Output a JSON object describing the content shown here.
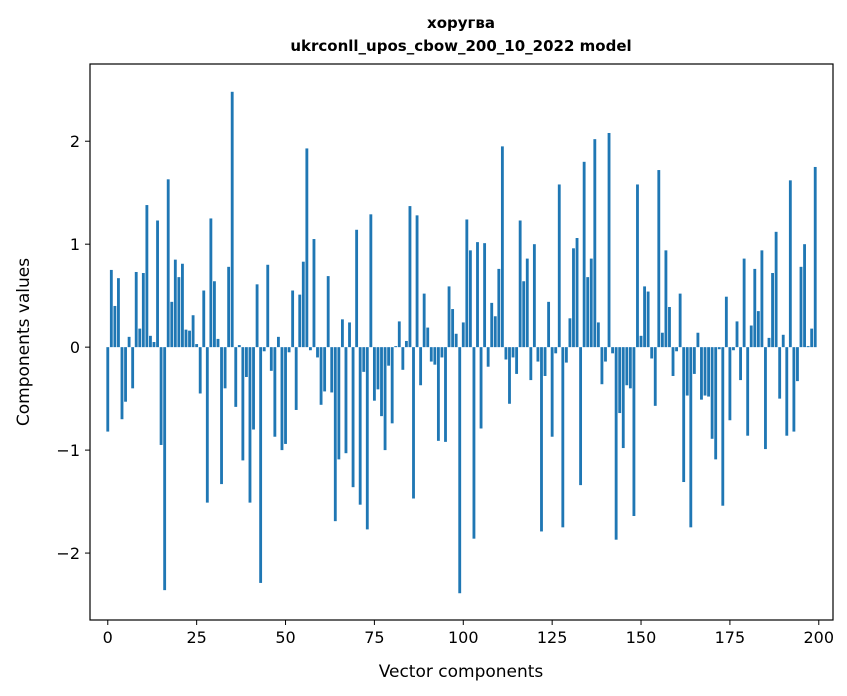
{
  "chart_data": {
    "type": "bar",
    "title_line1": "хоругва",
    "title_line2": "ukrconll_upos_cbow_200_10_2022 model",
    "xlabel": "Vector components",
    "ylabel": "Components values",
    "xlim": [
      -5,
      204
    ],
    "ylim": [
      -2.65,
      2.75
    ],
    "xticks": [
      0,
      25,
      50,
      75,
      100,
      125,
      150,
      175,
      200
    ],
    "xtick_labels": [
      "0",
      "25",
      "50",
      "75",
      "100",
      "125",
      "150",
      "175",
      "200"
    ],
    "yticks": [
      -2,
      -1,
      0,
      1,
      2
    ],
    "ytick_labels": [
      "−2",
      "−1",
      "0",
      "1",
      "2"
    ],
    "grid": false,
    "color": "#1f77b4",
    "x": [
      0,
      1,
      2,
      3,
      4,
      5,
      6,
      7,
      8,
      9,
      10,
      11,
      12,
      13,
      14,
      15,
      16,
      17,
      18,
      19,
      20,
      21,
      22,
      23,
      24,
      25,
      26,
      27,
      28,
      29,
      30,
      31,
      32,
      33,
      34,
      35,
      36,
      37,
      38,
      39,
      40,
      41,
      42,
      43,
      44,
      45,
      46,
      47,
      48,
      49,
      50,
      51,
      52,
      53,
      54,
      55,
      56,
      57,
      58,
      59,
      60,
      61,
      62,
      63,
      64,
      65,
      66,
      67,
      68,
      69,
      70,
      71,
      72,
      73,
      74,
      75,
      76,
      77,
      78,
      79,
      80,
      81,
      82,
      83,
      84,
      85,
      86,
      87,
      88,
      89,
      90,
      91,
      92,
      93,
      94,
      95,
      96,
      97,
      98,
      99,
      100,
      101,
      102,
      103,
      104,
      105,
      106,
      107,
      108,
      109,
      110,
      111,
      112,
      113,
      114,
      115,
      116,
      117,
      118,
      119,
      120,
      121,
      122,
      123,
      124,
      125,
      126,
      127,
      128,
      129,
      130,
      131,
      132,
      133,
      134,
      135,
      136,
      137,
      138,
      139,
      140,
      141,
      142,
      143,
      144,
      145,
      146,
      147,
      148,
      149,
      150,
      151,
      152,
      153,
      154,
      155,
      156,
      157,
      158,
      159,
      160,
      161,
      162,
      163,
      164,
      165,
      166,
      167,
      168,
      169,
      170,
      171,
      172,
      173,
      174,
      175,
      176,
      177,
      178,
      179,
      180,
      181,
      182,
      183,
      184,
      185,
      186,
      187,
      188,
      189,
      190,
      191,
      192,
      193,
      194,
      195,
      196,
      197,
      198,
      199
    ],
    "values": [
      -0.82,
      0.75,
      0.4,
      0.67,
      -0.7,
      -0.53,
      0.1,
      -0.4,
      0.73,
      0.18,
      0.72,
      1.38,
      0.11,
      0.05,
      1.23,
      -0.95,
      -2.36,
      1.63,
      0.44,
      0.85,
      0.68,
      0.81,
      0.17,
      0.16,
      0.31,
      0.03,
      -0.45,
      0.55,
      -1.51,
      1.25,
      0.64,
      0.08,
      -1.33,
      -0.4,
      0.78,
      2.48,
      -0.58,
      0.02,
      -1.1,
      -0.29,
      -1.51,
      -0.8,
      0.61,
      -2.29,
      -0.04,
      0.8,
      -0.23,
      -0.87,
      0.1,
      -1.0,
      -0.94,
      -0.05,
      0.55,
      -0.61,
      0.51,
      0.83,
      1.93,
      -0.03,
      1.05,
      -0.1,
      -0.56,
      -0.43,
      0.69,
      -0.44,
      -1.69,
      -1.09,
      0.27,
      -1.03,
      0.24,
      -1.36,
      1.14,
      -1.53,
      -0.24,
      -1.77,
      1.29,
      -0.52,
      -0.41,
      -0.67,
      -1.0,
      -0.18,
      -0.74,
      0.01,
      0.25,
      -0.22,
      0.06,
      1.37,
      -1.47,
      1.28,
      -0.37,
      0.52,
      0.19,
      -0.14,
      -0.17,
      -0.91,
      -0.1,
      -0.92,
      0.59,
      0.37,
      0.13,
      -2.39,
      0.24,
      1.24,
      0.94,
      -1.86,
      1.02,
      -0.79,
      1.01,
      -0.19,
      0.43,
      0.3,
      0.76,
      1.95,
      -0.12,
      -0.55,
      -0.1,
      -0.26,
      1.23,
      0.64,
      0.86,
      -0.32,
      1.0,
      -0.14,
      -1.79,
      -0.28,
      0.44,
      -0.87,
      -0.06,
      1.58,
      -1.75,
      -0.15,
      0.28,
      0.96,
      1.06,
      -1.34,
      1.8,
      0.68,
      0.86,
      2.02,
      0.24,
      -0.36,
      -0.14,
      2.08,
      -0.06,
      -1.87,
      -0.64,
      -0.98,
      -0.37,
      -0.4,
      -1.64,
      1.58,
      0.11,
      0.59,
      0.54,
      -0.11,
      -0.57,
      1.72,
      0.14,
      0.94,
      0.39,
      -0.28,
      -0.04,
      0.52,
      -1.31,
      -0.47,
      -1.75,
      -0.26,
      0.14,
      -0.51,
      -0.47,
      -0.48,
      -0.89,
      -1.09,
      -0.02,
      -1.54,
      0.49,
      -0.71,
      -0.03,
      0.25,
      -0.32,
      0.86,
      -0.86,
      0.21,
      0.76,
      0.35,
      0.94,
      -0.99,
      0.09,
      0.72,
      1.12,
      -0.5,
      0.12,
      -0.86,
      1.62,
      -0.82,
      -0.33,
      0.78,
      1.0,
      0.01,
      0.18,
      1.75
    ]
  }
}
